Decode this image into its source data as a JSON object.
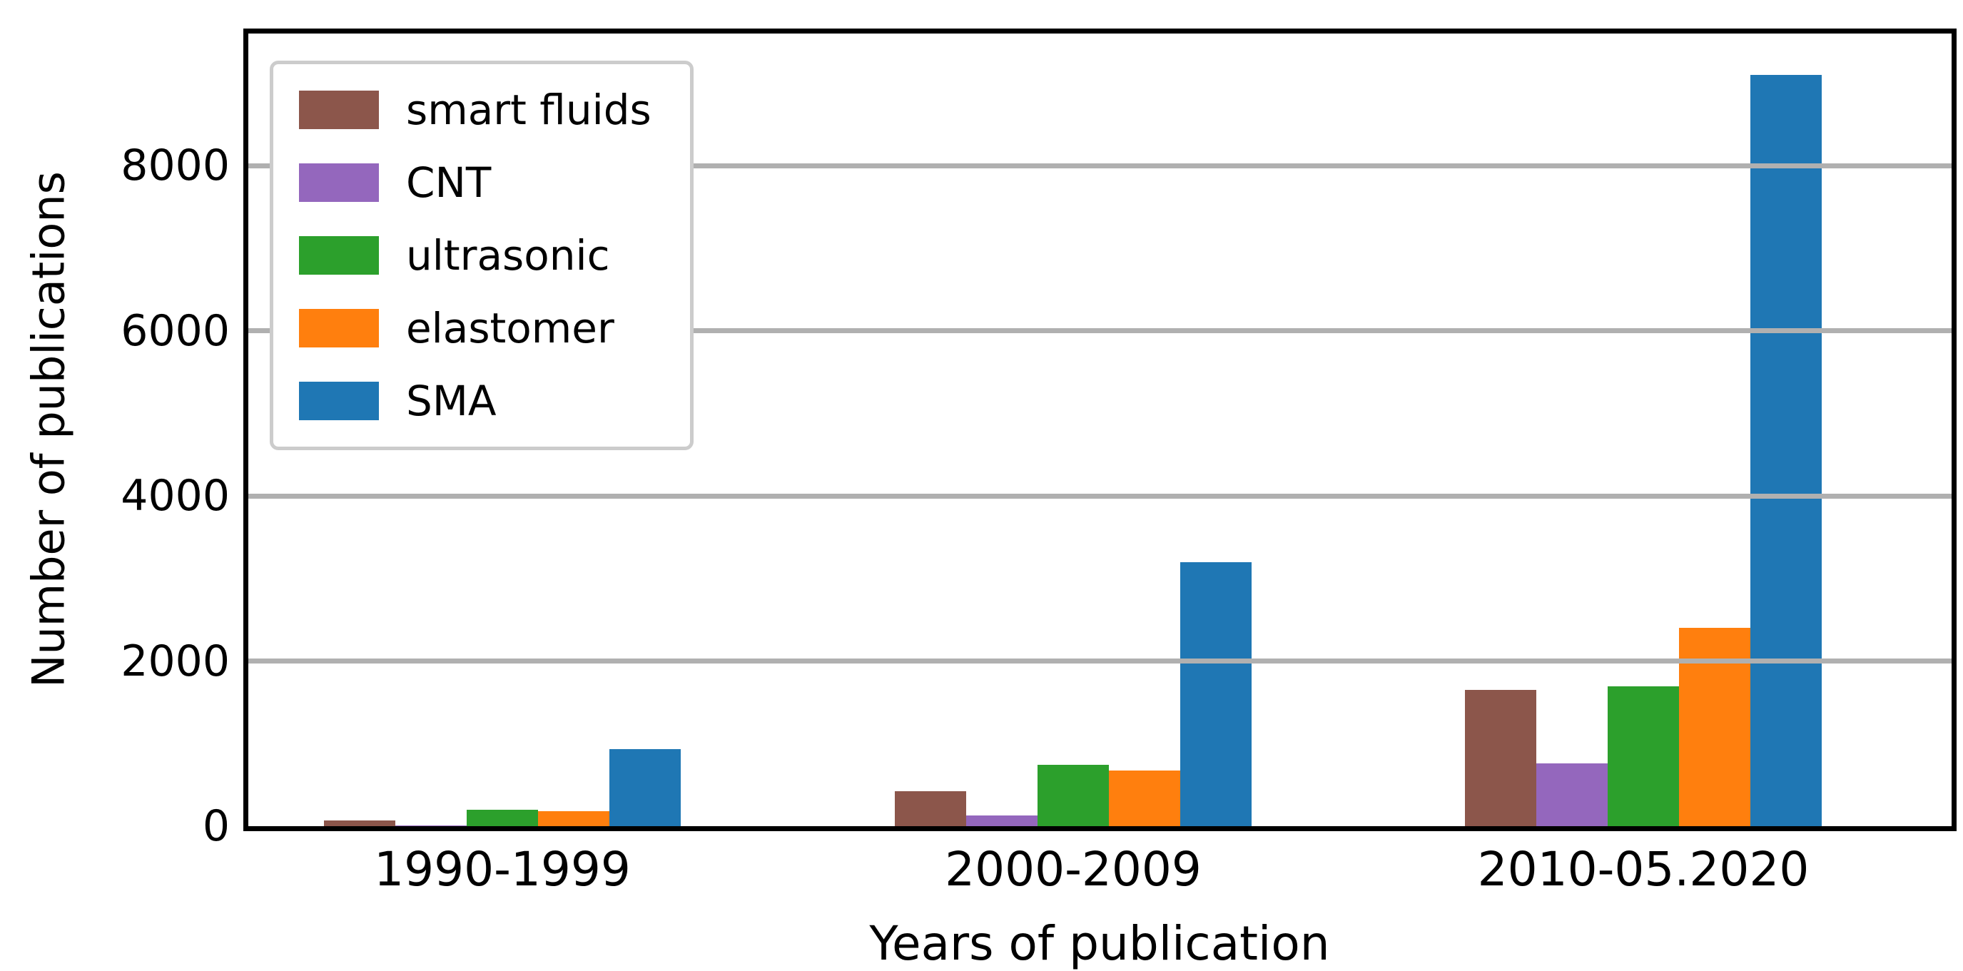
{
  "figure": {
    "background_color": "#ffffff",
    "spine_color": "#000000",
    "grid_color": "#b0b0b0",
    "legend_border_color": "#cccccc"
  },
  "chart_data": {
    "type": "bar",
    "title": "",
    "xlabel": "Years of publication",
    "ylabel": "Number of publications",
    "categories": [
      "1990-1999",
      "2000-2009",
      "2010-05.2020"
    ],
    "series": [
      {
        "name": "smart fluids",
        "color": "#8c564b",
        "values": [
          70,
          420,
          1650
        ]
      },
      {
        "name": "CNT",
        "color": "#9467bd",
        "values": [
          10,
          130,
          760
        ]
      },
      {
        "name": "ultrasonic",
        "color": "#2ca02c",
        "values": [
          200,
          745,
          1690
        ]
      },
      {
        "name": "elastomer",
        "color": "#ff7f0e",
        "values": [
          180,
          670,
          2400
        ]
      },
      {
        "name": "SMA",
        "color": "#1f77b4",
        "values": [
          935,
          3200,
          9100
        ]
      }
    ],
    "yticks": [
      0,
      2000,
      4000,
      6000,
      8000
    ],
    "ylim": [
      0,
      9600
    ],
    "grid": true,
    "grid_above_bars": true,
    "legend_position": "upper left"
  }
}
